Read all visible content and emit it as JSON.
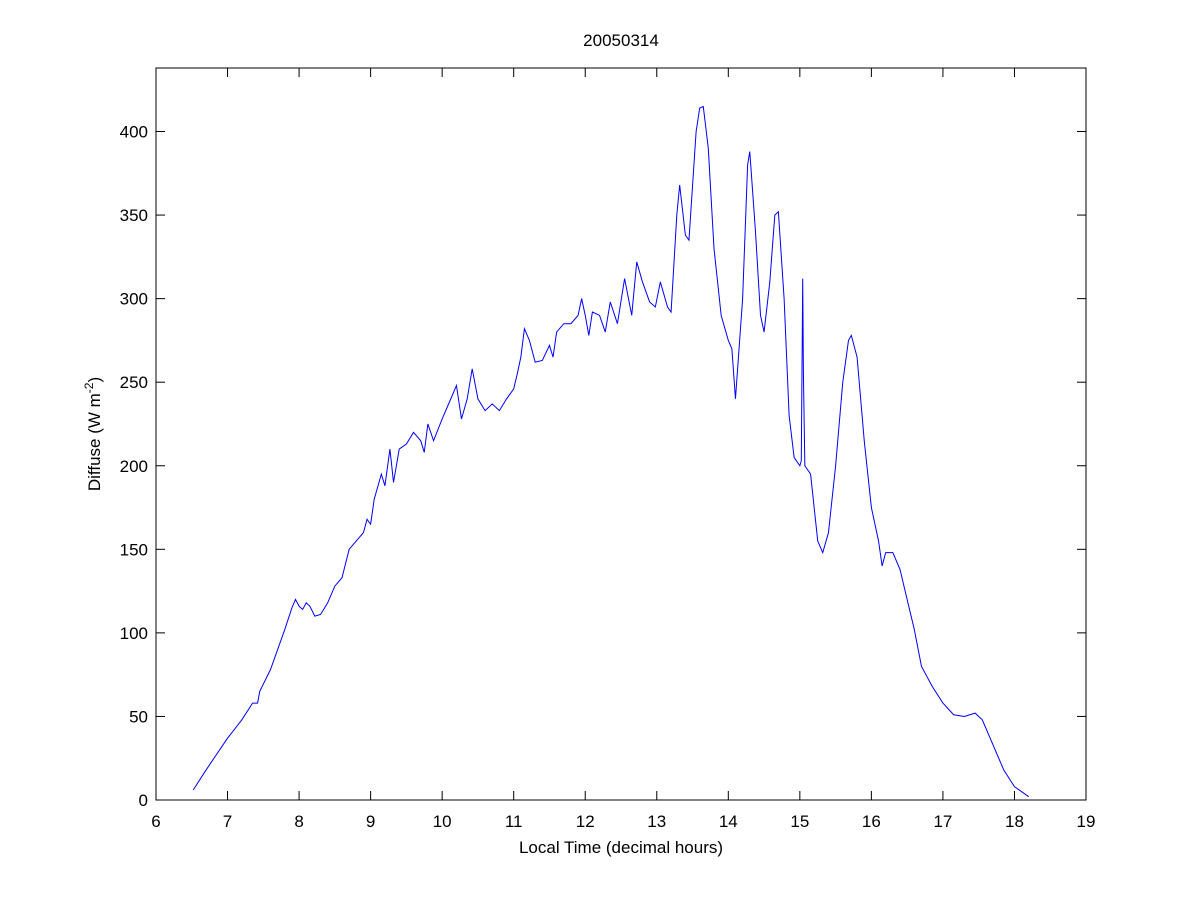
{
  "chart_data": {
    "type": "line",
    "title": "20050314",
    "xlabel": "Local Time (decimal hours)",
    "ylabel": {
      "text": "Diffuse (W m",
      "superscript": "-2",
      "suffix": ")"
    },
    "color": "#0000ff",
    "xlim": [
      6,
      19
    ],
    "xticks": [
      6,
      7,
      8,
      9,
      10,
      11,
      12,
      13,
      14,
      15,
      16,
      17,
      18,
      19
    ],
    "ylim": [
      0,
      438
    ],
    "yticks": [
      0,
      50,
      100,
      150,
      200,
      250,
      300,
      350,
      400
    ],
    "x": [
      6.52,
      6.7,
      7.0,
      7.2,
      7.35,
      7.42,
      7.45,
      7.6,
      7.8,
      7.9,
      7.95,
      8.0,
      8.05,
      8.1,
      8.15,
      8.22,
      8.3,
      8.4,
      8.5,
      8.6,
      8.7,
      8.8,
      8.9,
      8.95,
      9.0,
      9.05,
      9.15,
      9.2,
      9.27,
      9.32,
      9.4,
      9.5,
      9.6,
      9.7,
      9.75,
      9.8,
      9.88,
      10.0,
      10.1,
      10.2,
      10.27,
      10.35,
      10.42,
      10.5,
      10.6,
      10.7,
      10.8,
      10.9,
      11.0,
      11.05,
      11.1,
      11.15,
      11.22,
      11.3,
      11.4,
      11.5,
      11.55,
      11.6,
      11.7,
      11.8,
      11.9,
      11.95,
      12.0,
      12.05,
      12.1,
      12.2,
      12.28,
      12.35,
      12.45,
      12.55,
      12.65,
      12.72,
      12.8,
      12.9,
      12.98,
      13.05,
      13.15,
      13.2,
      13.28,
      13.32,
      13.4,
      13.45,
      13.55,
      13.6,
      13.65,
      13.72,
      13.8,
      13.9,
      14.0,
      14.05,
      14.1,
      14.2,
      14.27,
      14.3,
      14.38,
      14.45,
      14.5,
      14.58,
      14.65,
      14.7,
      14.78,
      14.85,
      14.92,
      15.0,
      15.02,
      15.04,
      15.05,
      15.07,
      15.15,
      15.25,
      15.32,
      15.4,
      15.5,
      15.6,
      15.68,
      15.72,
      15.8,
      15.9,
      16.0,
      16.1,
      16.15,
      16.2,
      16.3,
      16.4,
      16.5,
      16.6,
      16.7,
      16.85,
      17.0,
      17.15,
      17.3,
      17.45,
      17.55,
      17.7,
      17.85,
      18.0,
      18.2
    ],
    "values": [
      6,
      18,
      37,
      48,
      58,
      58,
      65,
      78,
      102,
      115,
      120,
      116,
      114,
      118,
      116,
      110,
      111,
      118,
      128,
      133,
      150,
      155,
      160,
      168,
      165,
      180,
      195,
      188,
      210,
      190,
      210,
      213,
      220,
      215,
      208,
      225,
      215,
      228,
      238,
      248,
      228,
      240,
      258,
      240,
      233,
      237,
      233,
      240,
      246,
      255,
      265,
      282,
      275,
      262,
      263,
      272,
      265,
      280,
      285,
      285,
      290,
      300,
      290,
      278,
      292,
      290,
      280,
      298,
      285,
      312,
      290,
      322,
      310,
      298,
      295,
      310,
      295,
      292,
      350,
      368,
      338,
      335,
      400,
      414,
      415,
      390,
      330,
      290,
      275,
      270,
      240,
      300,
      380,
      388,
      340,
      290,
      280,
      310,
      350,
      352,
      300,
      230,
      205,
      200,
      203,
      312,
      255,
      200,
      195,
      155,
      148,
      160,
      200,
      250,
      275,
      278,
      265,
      215,
      175,
      155,
      140,
      148,
      148,
      138,
      120,
      102,
      80,
      68,
      58,
      51,
      50,
      52,
      48,
      33,
      18,
      8,
      2
    ]
  }
}
